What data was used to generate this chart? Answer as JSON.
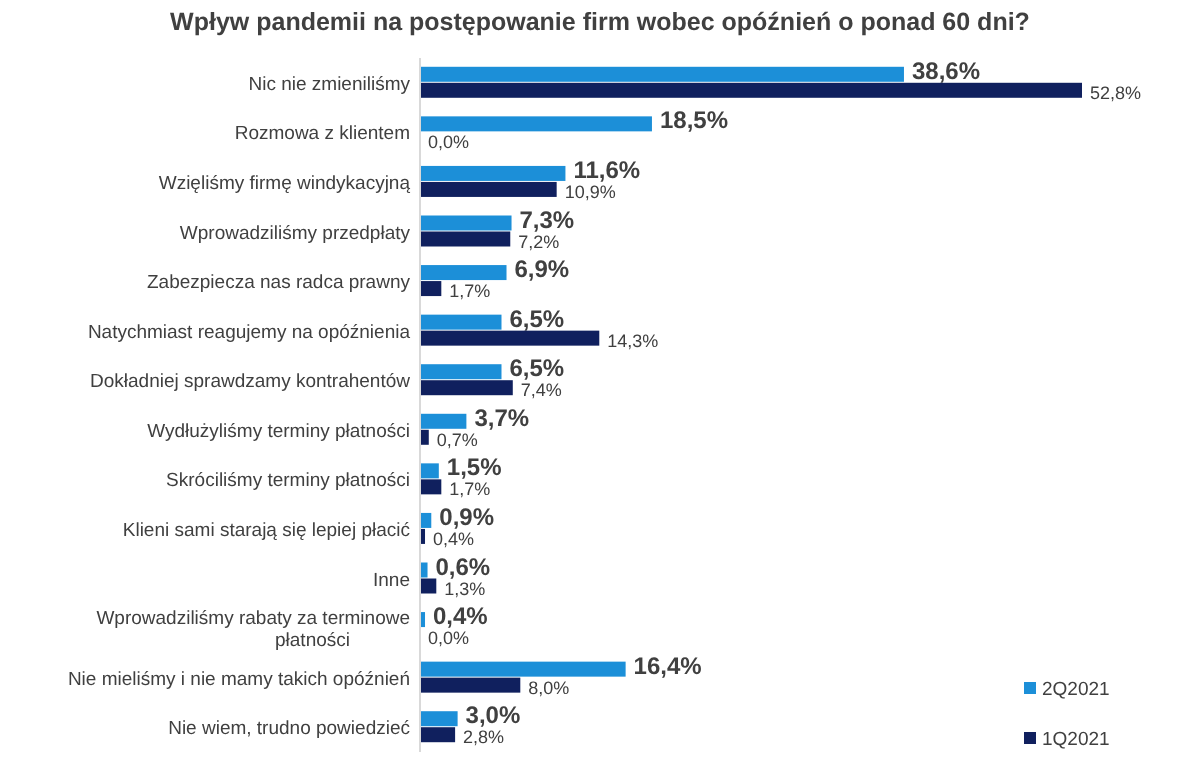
{
  "chart_data": {
    "type": "bar",
    "orientation": "horizontal",
    "title": "Wpływ pandemii na postępowanie firm wobec opóźnień o ponad 60 dni?",
    "categories": [
      "Nic nie zmieniliśmy",
      "Rozmowa z klientem",
      "Wzięliśmy firmę windykacyjną",
      "Wprowadziliśmy przedpłaty",
      "Zabezpiecza nas radca prawny",
      "Natychmiast reagujemy na opóźnienia",
      "Dokładniej sprawdzamy kontrahentów",
      "Wydłużyliśmy terminy płatności",
      "Skróciliśmy terminy płatności",
      "Klieni sami starają się lepiej płacić",
      "Inne",
      "Wprowadziliśmy rabaty za terminowe\npłatności",
      "Nie mieliśmy i nie mamy takich opóźnień",
      "Nie wiem, trudno powiedzieć"
    ],
    "series": [
      {
        "name": "2Q2021",
        "color": "#1c8fd8",
        "values": [
          38.6,
          18.5,
          11.6,
          7.3,
          6.9,
          6.5,
          6.5,
          3.7,
          1.5,
          0.9,
          0.6,
          0.4,
          16.4,
          3.0
        ],
        "value_labels": [
          "38,6%",
          "18,5%",
          "11,6%",
          "7,3%",
          "6,9%",
          "6,5%",
          "6,5%",
          "3,7%",
          "1,5%",
          "0,9%",
          "0,6%",
          "0,4%",
          "16,4%",
          "3,0%"
        ]
      },
      {
        "name": "1Q2021",
        "color": "#10205e",
        "values": [
          52.8,
          0.0,
          10.9,
          7.2,
          1.7,
          14.3,
          7.4,
          0.7,
          1.7,
          0.4,
          1.3,
          0.0,
          8.0,
          2.8
        ],
        "value_labels": [
          "52,8%",
          "0,0%",
          "10,9%",
          "7,2%",
          "1,7%",
          "14,3%",
          "7,4%",
          "0,7%",
          "1,7%",
          "0,4%",
          "1,3%",
          "0,0%",
          "8,0%",
          "2,8%"
        ]
      }
    ],
    "legend": "bottom right"
  }
}
